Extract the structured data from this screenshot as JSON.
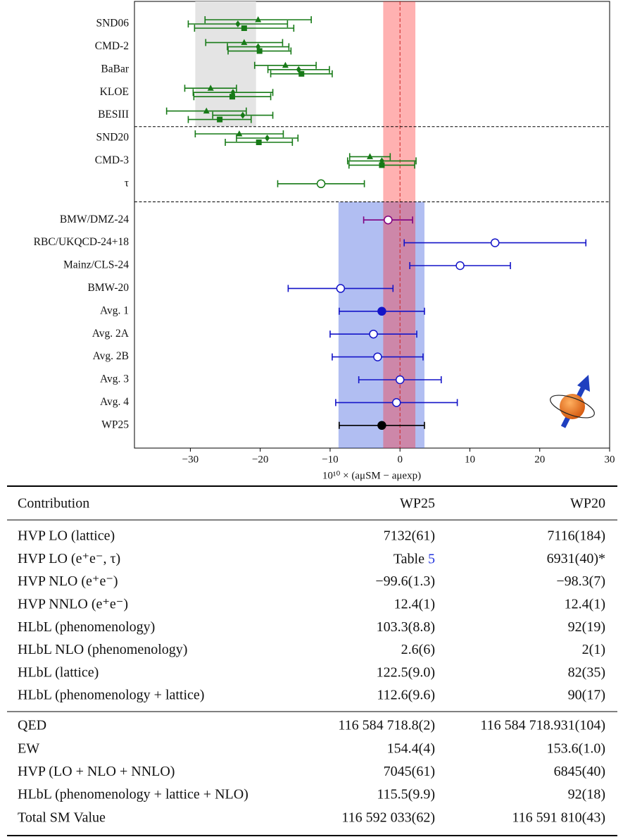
{
  "chart_data": {
    "type": "forest",
    "xlim": [
      -38,
      30
    ],
    "xticks": [
      {
        "value": -30,
        "label": "−30"
      },
      {
        "value": -20,
        "label": "−20"
      },
      {
        "value": -10,
        "label": "−10"
      },
      0,
      10,
      20,
      30
    ],
    "xlabel": "10¹⁰ × (aμSM − aμexp)",
    "reference_line": {
      "x": 0,
      "color": "#cc2222"
    },
    "bands": [
      {
        "xlim": [
          -2.4,
          2.2
        ],
        "color": "rgba(255,40,40,0.36)"
      }
    ],
    "groups": [
      {
        "color": "#177a17",
        "band": {
          "xlim": [
            -29.3,
            -20.6
          ],
          "color": "#e4e4e4"
        },
        "rows": [
          {
            "label": "SND06",
            "points": [
              {
                "marker": "triangle",
                "value": -20.3,
                "error": 7.6
              },
              {
                "marker": "diamond",
                "value": -23.2,
                "error": 7.1
              },
              {
                "marker": "square",
                "value": -22.3,
                "error": 7.1
              }
            ]
          },
          {
            "label": "CMD-2",
            "points": [
              {
                "marker": "triangle",
                "value": -22.3,
                "error": 5.5
              },
              {
                "marker": "diamond",
                "value": -20.3,
                "error": 4.4
              },
              {
                "marker": "square",
                "value": -20.1,
                "error": 4.5
              }
            ]
          },
          {
            "label": "BaBar",
            "points": [
              {
                "marker": "triangle",
                "value": -16.4,
                "error": 4.4
              },
              {
                "marker": "diamond",
                "value": -14.5,
                "error": 4.4
              },
              {
                "marker": "square",
                "value": -14.1,
                "error": 4.4
              }
            ]
          },
          {
            "label": "KLOE",
            "points": [
              {
                "marker": "triangle",
                "value": -27.1,
                "error": 3.7
              },
              {
                "marker": "diamond",
                "value": -23.9,
                "error": 5.7
              },
              {
                "marker": "square",
                "value": -24.0,
                "error": 5.5
              }
            ]
          },
          {
            "label": "BESIII",
            "points": [
              {
                "marker": "triangle",
                "value": -27.7,
                "error": 5.7
              },
              {
                "marker": "diamond",
                "value": -22.5,
                "error": 4.3
              },
              {
                "marker": "square",
                "value": -25.8,
                "error": 4.5
              }
            ]
          }
        ]
      },
      {
        "color": "#177a17",
        "rows": [
          {
            "label": "SND20",
            "points": [
              {
                "marker": "triangle",
                "value": -23.0,
                "error": 6.3
              },
              {
                "marker": "diamond",
                "value": -19.0,
                "error": 4.4
              },
              {
                "marker": "square",
                "value": -20.2,
                "error": 4.8
              }
            ]
          },
          {
            "label": "CMD-3",
            "points": [
              {
                "marker": "triangle",
                "value": -4.3,
                "error": 2.9
              },
              {
                "marker": "diamond",
                "value": -2.6,
                "error": 4.9
              },
              {
                "marker": "square",
                "value": -2.6,
                "error": 4.7
              }
            ]
          },
          {
            "label": "τ",
            "points": [
              {
                "marker": "circle-open",
                "value": -11.3,
                "error": 6.2
              }
            ]
          }
        ]
      },
      {
        "color": "#1414c8",
        "band": {
          "xlim": [
            -8.8,
            3.5
          ],
          "color": "rgba(70,100,225,0.42)"
        },
        "rows": [
          {
            "label": "BMW/DMZ-24",
            "color": "#800080",
            "points": [
              {
                "marker": "circle-open",
                "value": -1.7,
                "error": 3.5
              }
            ]
          },
          {
            "label": "RBC/UKQCD-24+18",
            "points": [
              {
                "marker": "circle-open",
                "value": 13.6,
                "error": 13.0
              }
            ]
          },
          {
            "label": "Mainz/CLS-24",
            "points": [
              {
                "marker": "circle-open",
                "value": 8.6,
                "error": 7.2
              }
            ]
          },
          {
            "label": "BMW-20",
            "points": [
              {
                "marker": "circle-open",
                "value": -8.5,
                "error": 7.5
              }
            ]
          },
          {
            "label": "Avg. 1",
            "points": [
              {
                "marker": "circle",
                "value": -2.6,
                "error": 6.1
              }
            ]
          },
          {
            "label": "Avg. 2A",
            "points": [
              {
                "marker": "circle-open",
                "value": -3.8,
                "error": 6.2
              }
            ]
          },
          {
            "label": "Avg. 2B",
            "points": [
              {
                "marker": "circle-open",
                "value": -3.2,
                "error": 6.5
              }
            ]
          },
          {
            "label": "Avg. 3",
            "points": [
              {
                "marker": "circle-open",
                "value": 0.0,
                "error": 5.9
              }
            ]
          },
          {
            "label": "Avg. 4",
            "points": [
              {
                "marker": "circle-open",
                "value": -0.5,
                "error": 8.7
              }
            ]
          },
          {
            "label": "WP25",
            "color": "#000000",
            "points": [
              {
                "marker": "circle",
                "value": -2.6,
                "error": 6.1
              }
            ]
          }
        ]
      }
    ]
  },
  "table": {
    "header": [
      "Contribution",
      "WP25",
      "WP20"
    ],
    "sections": [
      [
        [
          "HVP LO (lattice)",
          "7132(61)",
          "7116(184)"
        ],
        [
          "HVP LO (e⁺e⁻, τ)",
          {
            "text": "Table",
            "ref": "5"
          },
          "6931(40)*"
        ],
        [
          "HVP NLO (e⁺e⁻)",
          "−99.6(1.3)",
          "−98.3(7)"
        ],
        [
          "HVP NNLO (e⁺e⁻)",
          "12.4(1)",
          "12.4(1)"
        ],
        [
          "HLbL (phenomenology)",
          "103.3(8.8)",
          "92(19)"
        ],
        [
          "HLbL NLO (phenomenology)",
          "2.6(6)",
          "2(1)"
        ],
        [
          "HLbL (lattice)",
          "122.5(9.0)",
          "82(35)"
        ],
        [
          "HLbL (phenomenology + lattice)",
          "112.6(9.6)",
          "90(17)"
        ]
      ],
      [
        [
          "QED",
          "116 584 718.8(2)",
          "116 584 718.931(104)"
        ],
        [
          "EW",
          "154.4(4)",
          "153.6(1.0)"
        ],
        [
          "HVP (LO + NLO + NNLO)",
          "7045(61)",
          "6845(40)"
        ],
        [
          "HLbL (phenomenology + lattice + NLO)",
          "115.5(9.9)",
          "92(18)"
        ],
        [
          "Total SM Value",
          "116 592 033(62)",
          "116 591 810(43)"
        ]
      ]
    ]
  }
}
